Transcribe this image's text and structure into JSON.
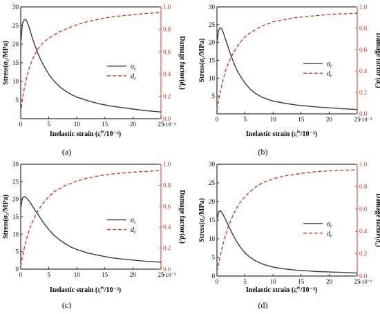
{
  "figure": {
    "colors": {
      "stress": "#3a3a3a",
      "damage": "#b5412f",
      "left_axis": "#000000",
      "right_axis": "#c0392b"
    }
  },
  "chart_data": [
    {
      "type": "line",
      "panel_label": "(a)",
      "xlabel_main": "Inelastic strain (",
      "xlabel_symbol": "ε̃",
      "xlabel_sup": "in",
      "xlabel_sub": "c",
      "xlabel_unit": "/10⁻³)",
      "x_multiplier": "×10⁻³",
      "ylabel_left": "Stress(σc/MPa)",
      "ylabel_right": "Damage factor(dc)",
      "xlim": [
        0,
        25
      ],
      "ylim_left": [
        0,
        30
      ],
      "ylim_right": [
        0,
        1
      ],
      "xticks": [
        "0",
        "5",
        "10",
        "15",
        "20",
        "25"
      ],
      "yticks_left": [
        "",
        "5",
        "10",
        "15",
        "20",
        "25",
        "30"
      ],
      "yticks_right": [
        "0.0",
        "0.2",
        "0.4",
        "0.6",
        "0.8",
        "1.0"
      ],
      "legend_placement": "center-right",
      "series": [
        {
          "name": "σc",
          "axis": "left",
          "style": "solid",
          "color": "#3a3a3a",
          "x": [
            0.0,
            0.3,
            0.6,
            0.9,
            1.2,
            1.5,
            2,
            2.5,
            3,
            3.5,
            4,
            5,
            6,
            7,
            8,
            9,
            10,
            12,
            14,
            16,
            18,
            20,
            22,
            25
          ],
          "y": [
            20.0,
            25.5,
            26.5,
            26.6,
            25.8,
            24.5,
            22.0,
            19.8,
            17.8,
            16.0,
            14.5,
            11.9,
            10.0,
            8.5,
            7.4,
            6.5,
            5.8,
            4.8,
            4.0,
            3.4,
            3.0,
            2.6,
            2.2,
            1.8
          ]
        },
        {
          "name": "dc",
          "axis": "right",
          "style": "dashed",
          "color": "#b5412f",
          "x": [
            0.0,
            0.2,
            0.5,
            1,
            1.5,
            2,
            3,
            4,
            5,
            6,
            7,
            8,
            10,
            12,
            14,
            16,
            18,
            20,
            22,
            25
          ],
          "y": [
            0.05,
            0.13,
            0.24,
            0.36,
            0.45,
            0.52,
            0.62,
            0.68,
            0.72,
            0.75,
            0.78,
            0.8,
            0.84,
            0.87,
            0.89,
            0.91,
            0.92,
            0.93,
            0.94,
            0.95
          ]
        }
      ]
    },
    {
      "type": "line",
      "panel_label": "(b)",
      "xlabel_main": "Inelastic strain (",
      "xlabel_symbol": "ε̃",
      "xlabel_sup": "in",
      "xlabel_sub": "c",
      "xlabel_unit": "/10⁻³)",
      "x_multiplier": "×10⁻³",
      "ylabel_left": "Stress(σc/MPa)",
      "ylabel_right": "Damage factor (dc)",
      "xlim": [
        0,
        25
      ],
      "ylim_left": [
        0,
        30
      ],
      "ylim_right": [
        0,
        1
      ],
      "xticks": [
        "0",
        "5",
        "10",
        "15",
        "20",
        "25"
      ],
      "yticks_left": [
        "",
        "5",
        "10",
        "15",
        "20",
        "25",
        "30"
      ],
      "yticks_right": [
        "0.0",
        "0.2",
        "0.4",
        "0.6",
        "0.8",
        "1.0"
      ],
      "legend_placement": "center-right",
      "series": [
        {
          "name": "σc",
          "axis": "left",
          "style": "solid",
          "color": "#3a3a3a",
          "x": [
            0.0,
            0.3,
            0.6,
            0.9,
            1.2,
            1.5,
            2,
            2.5,
            3,
            3.5,
            4,
            5,
            6,
            7,
            8,
            9,
            10,
            12,
            14,
            16,
            18,
            20,
            22,
            25
          ],
          "y": [
            20.0,
            23.5,
            24.2,
            23.8,
            22.5,
            21.0,
            18.7,
            16.4,
            14.3,
            12.5,
            11.0,
            8.6,
            6.8,
            5.6,
            4.7,
            4.1,
            3.6,
            3.0,
            2.5,
            2.2,
            1.9,
            1.7,
            1.5,
            1.2
          ]
        },
        {
          "name": "dc",
          "axis": "right",
          "style": "dashed",
          "color": "#b5412f",
          "x": [
            0.0,
            0.2,
            0.5,
            1,
            1.5,
            2,
            3,
            4,
            5,
            6,
            7,
            8,
            10,
            12,
            14,
            16,
            18,
            20,
            22,
            25
          ],
          "y": [
            0.04,
            0.1,
            0.18,
            0.3,
            0.4,
            0.47,
            0.58,
            0.66,
            0.72,
            0.76,
            0.79,
            0.82,
            0.86,
            0.88,
            0.9,
            0.91,
            0.92,
            0.93,
            0.935,
            0.94
          ]
        }
      ]
    },
    {
      "type": "line",
      "panel_label": "(c)",
      "xlabel_main": "Inelastic strain (",
      "xlabel_symbol": "ε̃",
      "xlabel_sup": "in",
      "xlabel_sub": "c",
      "xlabel_unit": "/10⁻³)",
      "x_multiplier": "×10⁻³",
      "ylabel_left": "Stress(σc/MPa)",
      "ylabel_right": "Damage factor(dc)",
      "xlim": [
        0,
        25
      ],
      "ylim_left": [
        0,
        30
      ],
      "ylim_right": [
        0,
        1
      ],
      "xticks": [
        "0",
        "5",
        "10",
        "15",
        "20",
        "25"
      ],
      "yticks_left": [
        "0",
        "5",
        "10",
        "15",
        "20",
        "25",
        "30"
      ],
      "yticks_right": [
        "0.0",
        "0.2",
        "0.4",
        "0.6",
        "0.8",
        "1.0"
      ],
      "legend_placement": "center-right",
      "series": [
        {
          "name": "σc",
          "axis": "left",
          "style": "solid",
          "color": "#3a3a3a",
          "x": [
            0.0,
            0.3,
            0.6,
            0.9,
            1.2,
            1.5,
            2,
            2.5,
            3,
            3.5,
            4,
            5,
            6,
            7,
            8,
            9,
            10,
            12,
            14,
            16,
            18,
            20,
            22,
            25
          ],
          "y": [
            17.5,
            20.3,
            20.8,
            20.6,
            20.1,
            19.5,
            18.3,
            17.0,
            15.8,
            14.6,
            13.4,
            11.3,
            9.6,
            8.3,
            7.2,
            6.3,
            5.6,
            4.6,
            3.9,
            3.3,
            2.9,
            2.6,
            2.3,
            2.0
          ]
        },
        {
          "name": "dc",
          "axis": "right",
          "style": "dashed",
          "color": "#b5412f",
          "x": [
            0.0,
            0.2,
            0.5,
            1,
            1.5,
            2,
            3,
            4,
            5,
            6,
            7,
            8,
            10,
            12,
            14,
            16,
            18,
            20,
            22,
            25
          ],
          "y": [
            0.03,
            0.09,
            0.17,
            0.28,
            0.37,
            0.44,
            0.55,
            0.63,
            0.69,
            0.74,
            0.77,
            0.8,
            0.84,
            0.87,
            0.89,
            0.905,
            0.915,
            0.925,
            0.93,
            0.94
          ]
        }
      ]
    },
    {
      "type": "line",
      "panel_label": "(d)",
      "xlabel_main": "Inelastic strain (",
      "xlabel_symbol": "ε̃",
      "xlabel_sup": "in",
      "xlabel_sub": "c",
      "xlabel_unit": "/10⁻³)",
      "x_multiplier": "×10⁻³",
      "ylabel_left": "Stress(σc/MPa)",
      "ylabel_right": "Damage factor(dc)",
      "xlim": [
        0,
        25
      ],
      "ylim_left": [
        0,
        30
      ],
      "ylim_right": [
        0,
        1
      ],
      "xticks": [
        "0",
        "5",
        "10",
        "15",
        "20",
        "25"
      ],
      "yticks_left": [
        "0",
        "5",
        "10",
        "15",
        "20",
        "25",
        "30"
      ],
      "yticks_right": [
        "0.0",
        "0.2",
        "0.4",
        "0.6",
        "0.8",
        "1.0"
      ],
      "legend_placement": "center-right",
      "series": [
        {
          "name": "σc",
          "axis": "left",
          "style": "solid",
          "color": "#3a3a3a",
          "x": [
            0.0,
            0.3,
            0.6,
            0.9,
            1.2,
            1.5,
            2,
            2.5,
            3,
            3.5,
            4,
            5,
            6,
            7,
            8,
            9,
            10,
            12,
            14,
            16,
            18,
            20,
            22,
            25
          ],
          "y": [
            15.0,
            17.3,
            17.5,
            17.0,
            16.2,
            15.3,
            13.7,
            12.1,
            10.6,
            9.3,
            8.1,
            6.2,
            4.9,
            4.0,
            3.3,
            2.8,
            2.4,
            1.9,
            1.6,
            1.4,
            1.2,
            1.1,
            1.0,
            0.8
          ]
        },
        {
          "name": "dc",
          "axis": "right",
          "style": "dashed",
          "color": "#b5412f",
          "x": [
            0.0,
            0.2,
            0.5,
            1,
            1.5,
            2,
            3,
            4,
            5,
            6,
            7,
            8,
            10,
            12,
            14,
            16,
            18,
            20,
            22,
            25
          ],
          "y": [
            0.04,
            0.09,
            0.16,
            0.27,
            0.36,
            0.44,
            0.56,
            0.65,
            0.71,
            0.76,
            0.8,
            0.83,
            0.87,
            0.895,
            0.91,
            0.925,
            0.935,
            0.94,
            0.945,
            0.95
          ]
        }
      ]
    }
  ]
}
